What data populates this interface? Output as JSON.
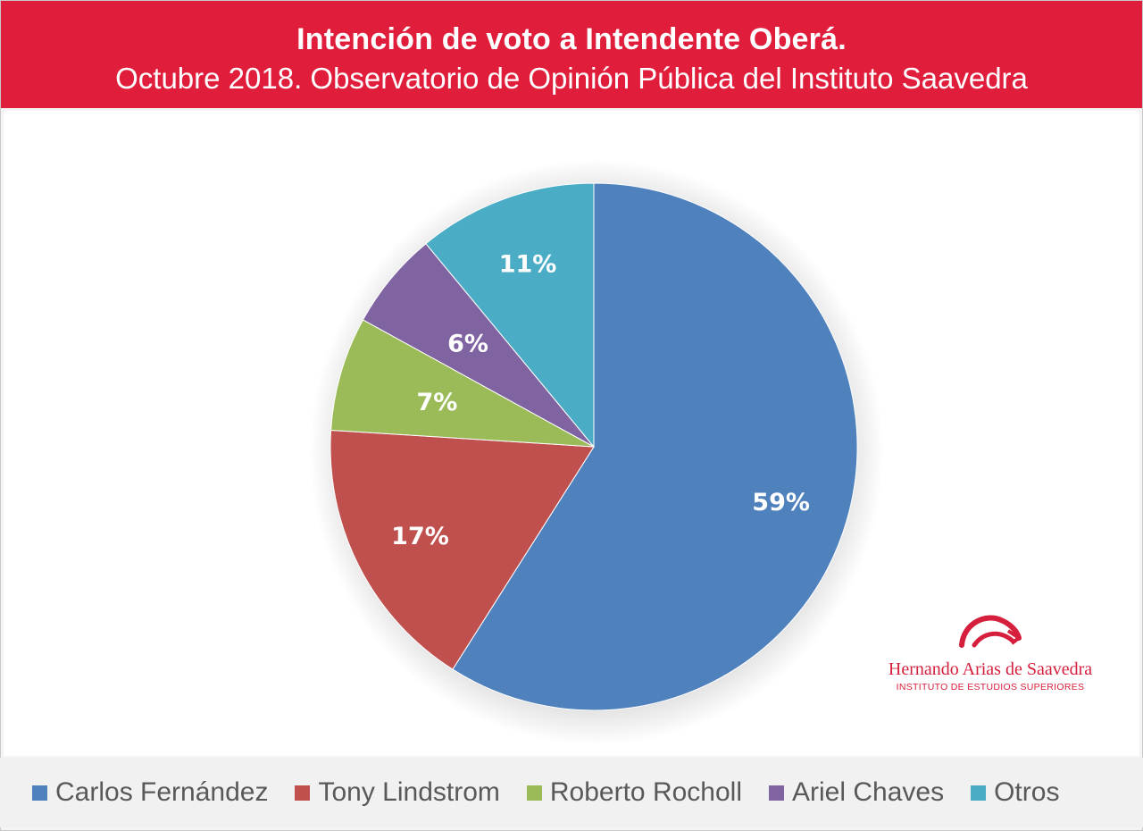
{
  "header": {
    "title": "Intención de voto a Intendente Oberá.",
    "subtitle": "Octubre 2018. Observatorio de Opinión Pública del Instituto Saavedra"
  },
  "chart_data": {
    "type": "pie",
    "title": "Intención de voto a Intendente Oberá.",
    "subtitle": "Octubre 2018. Observatorio de Opinión Pública del Instituto Saavedra",
    "categories": [
      "Carlos Fernández",
      "Tony Lindstrom",
      "Roberto Rocholl",
      "Ariel Chaves",
      "Otros"
    ],
    "values": [
      59,
      17,
      7,
      6,
      11
    ],
    "data_labels": [
      "59%",
      "17%",
      "7%",
      "6%",
      "11%"
    ],
    "colors": [
      "#4f81bd",
      "#c0504d",
      "#9bbb59",
      "#8064a2",
      "#4bacc6"
    ],
    "legend_position": "bottom"
  },
  "logo": {
    "name": "Hernando Arias de Saavedra",
    "subtitle": "INSTITUTO DE ESTUDIOS SUPERIORES"
  }
}
